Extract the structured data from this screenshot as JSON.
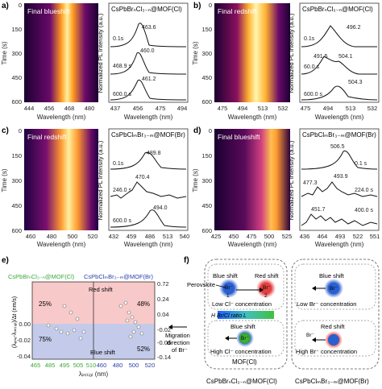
{
  "panels": {
    "a": {
      "letter": "a)",
      "heatmap_title": "Final blueshift",
      "spectra_title": "CsPbBrₙCl₃₋ₙ@MOF(Cl)",
      "heat_x_ticks": [
        "444",
        "456",
        "468",
        "480"
      ],
      "spec_x_ticks": [
        "437",
        "456",
        "475",
        "494"
      ],
      "y_ticks": [
        "0",
        "150",
        "300",
        "450",
        "600"
      ],
      "traces": [
        {
          "time": "0.1s",
          "peak": "463.6"
        },
        {
          "time": "468.9 s",
          "peak": "460.0"
        },
        {
          "time": "600.0 s",
          "peak": "461.2"
        }
      ]
    },
    "b": {
      "letter": "b)",
      "heatmap_title": "Final redshift",
      "spectra_title": "CsPbBrₙCl₃₋ₙ@MOF(Cl)",
      "heat_x_ticks": [
        "475",
        "494",
        "513",
        "532"
      ],
      "spec_x_ticks": [
        "475",
        "494",
        "513",
        "532"
      ],
      "y_ticks": [
        "0",
        "150",
        "300",
        "450",
        "600"
      ],
      "traces": [
        {
          "time": "0.1s",
          "peak": "496.2"
        },
        {
          "time": "60.0 s",
          "peak": "491.5",
          "peak2": "504.1"
        },
        {
          "time": "600.0 s",
          "peak": "504.3"
        }
      ]
    },
    "c": {
      "letter": "c)",
      "heatmap_title": "Final redshift",
      "spectra_title": "CsPbClₘBr₃₋ₘ@MOF(Br)",
      "heat_x_ticks": [
        "460",
        "480",
        "500",
        "520"
      ],
      "spec_x_ticks": [
        "432",
        "459",
        "486",
        "513",
        "540"
      ],
      "y_ticks": [
        "0",
        "150",
        "300",
        "450",
        "600"
      ],
      "traces": [
        {
          "time": "0.1s",
          "peak": "489.8"
        },
        {
          "time": "246.0 s",
          "peak": "470.4"
        },
        {
          "time": "600.0 s",
          "peak": "494.0"
        }
      ]
    },
    "d": {
      "letter": "d)",
      "heatmap_title": "Final blueshift",
      "spectra_title": "CsPbClₘBr₃₋ₘ@MOF(Br)",
      "heat_x_ticks": [
        "425",
        "450",
        "475",
        "500",
        "525"
      ],
      "spec_x_ticks": [
        "436",
        "464",
        "493",
        "522",
        "551"
      ],
      "y_ticks": [
        "0",
        "150",
        "300",
        "450",
        "600"
      ],
      "traces": [
        {
          "time": "0.1 s",
          "peak": "506.5"
        },
        {
          "time": "224.0 s",
          "peak": "493.9",
          "peak2": "477.3"
        },
        {
          "time": "400.0 s",
          "peak": "451.7"
        }
      ]
    }
  },
  "common": {
    "ylabel_time": "Time (s)",
    "xlabel_wl": "Wavelength (nm)",
    "ylabel_pl": "Normalized PL Intensity (a.u.)"
  },
  "panel_e": {
    "letter": "e)",
    "title_left": "CsPbBrₙCl₃₋ₙ@MOF(Cl)",
    "title_right": "CsPbClₘBr₃₋ₘ@MOF(Br)",
    "red_label": "Red shift",
    "blue_label": "Blue shift",
    "pct_tl": "25%",
    "pct_tr": "48%",
    "pct_bl": "75%",
    "pct_br": "52%",
    "ylabel": "(λₑₙₑ-λᵢₙᵢₜᵢₐₗ)/Δt (nm/s)",
    "xlabel": "λᵢₙᵢₜᵢₐₗ (nm)",
    "left_y_ticks": [
      "0.00",
      "-0.02",
      "-0.04"
    ],
    "right_y_ticks": [
      "0.72",
      "0.24",
      "0.04",
      "-0.02",
      "-0.06",
      "-0.14"
    ],
    "x_ticks_green": [
      "465",
      "485",
      "495",
      "505",
      "510"
    ],
    "x_ticks_blue": [
      "460",
      "480",
      "500",
      "520"
    ],
    "colors": {
      "red_zone": "#f8c9c9",
      "blue_zone": "#c4cbea",
      "green_ticks": "#3aa83a",
      "blue_ticks": "#2b3fa8"
    }
  },
  "panel_f": {
    "letter": "f)",
    "perovskite": "Perovskite",
    "ratio_label": "H Br/Cl ratio L",
    "migration_line1": "Migration",
    "migration_line2": "direction",
    "migration_line3": "of Br⁻",
    "mof_cl_label": "MOF(Cl)",
    "caption_left": "CsPbBrₙCl₃₋ₙ@MOF(Cl)",
    "caption_right": "CsPbClₘBr₃₋ₘ@MOF(Br)",
    "box1": {
      "blue": "Blue shift",
      "red": "Red shift",
      "ion1": "Br⁻",
      "num1": "1",
      "ion2": "Br⁻",
      "num2": "2",
      "concentration": "Low Cl⁻ concentration"
    },
    "box2": {
      "blue": "Blue shift",
      "ion": "Br⁻",
      "concentration": "High Cl⁻ concentration"
    },
    "box3": {
      "blue": "Blue shift",
      "ion": "Br⁻",
      "concentration": "Low Br⁻ concentration"
    },
    "box4": {
      "red": "Red shift",
      "ion": "Br⁻",
      "concentration": "High Br⁻ concentration"
    }
  }
}
